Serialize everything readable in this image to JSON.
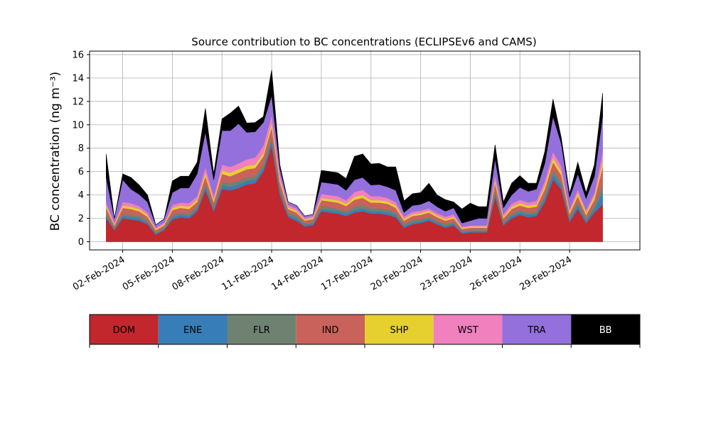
{
  "chart_data": {
    "type": "area",
    "title": "Source contribution to BC concentrations (ECLIPSEv6 and CAMS)",
    "xlabel": "",
    "ylabel": "BC concentration (ng m⁻³)",
    "ylim": [
      -0.7,
      16.3
    ],
    "yticks": [
      0,
      2,
      4,
      6,
      8,
      10,
      12,
      14,
      16
    ],
    "xlim": [
      "2024-01-31T00:00",
      "2024-03-04T06:00"
    ],
    "xticks": [
      "02-Feb-2024",
      "05-Feb-2024",
      "08-Feb-2024",
      "11-Feb-2024",
      "14-Feb-2024",
      "17-Feb-2024",
      "20-Feb-2024",
      "23-Feb-2024",
      "26-Feb-2024",
      "29-Feb-2024"
    ],
    "grid": true,
    "legend": "bottom colorbar",
    "stacked": true,
    "x": [
      "2024-02-01T00:00",
      "2024-02-01T12:00",
      "2024-02-02T00:00",
      "2024-02-02T12:00",
      "2024-02-03T00:00",
      "2024-02-03T12:00",
      "2024-02-04T00:00",
      "2024-02-04T12:00",
      "2024-02-05T00:00",
      "2024-02-05T12:00",
      "2024-02-06T00:00",
      "2024-02-06T12:00",
      "2024-02-07T00:00",
      "2024-02-07T12:00",
      "2024-02-08T00:00",
      "2024-02-08T12:00",
      "2024-02-09T00:00",
      "2024-02-09T12:00",
      "2024-02-10T00:00",
      "2024-02-10T12:00",
      "2024-02-11T00:00",
      "2024-02-11T12:00",
      "2024-02-12T00:00",
      "2024-02-12T12:00",
      "2024-02-13T00:00",
      "2024-02-13T12:00",
      "2024-02-14T00:00",
      "2024-02-14T12:00",
      "2024-02-15T00:00",
      "2024-02-15T12:00",
      "2024-02-16T00:00",
      "2024-02-16T12:00",
      "2024-02-17T00:00",
      "2024-02-17T12:00",
      "2024-02-18T00:00",
      "2024-02-18T12:00",
      "2024-02-19T00:00",
      "2024-02-19T12:00",
      "2024-02-20T00:00",
      "2024-02-20T12:00",
      "2024-02-21T00:00",
      "2024-02-21T12:00",
      "2024-02-22T00:00",
      "2024-02-22T12:00",
      "2024-02-23T00:00",
      "2024-02-23T12:00",
      "2024-02-24T00:00",
      "2024-02-24T12:00",
      "2024-02-25T00:00",
      "2024-02-25T12:00",
      "2024-02-26T00:00",
      "2024-02-26T12:00",
      "2024-02-27T00:00",
      "2024-02-27T12:00",
      "2024-02-28T00:00",
      "2024-02-28T12:00",
      "2024-02-29T00:00",
      "2024-02-29T12:00",
      "2024-03-01T00:00",
      "2024-03-01T12:00",
      "2024-03-02T00:00"
    ],
    "series": [
      {
        "name": "DOM",
        "color": "#c1272d",
        "values": [
          2.0,
          1.0,
          2.0,
          1.9,
          1.8,
          1.5,
          0.6,
          1.0,
          1.9,
          2.1,
          2.0,
          2.6,
          4.4,
          2.6,
          4.5,
          4.4,
          4.6,
          4.9,
          5.0,
          6.0,
          8.2,
          4.0,
          2.1,
          1.8,
          1.3,
          1.4,
          2.6,
          2.5,
          2.4,
          2.2,
          2.5,
          2.6,
          2.4,
          2.4,
          2.3,
          2.1,
          1.2,
          1.5,
          1.6,
          1.8,
          1.5,
          1.2,
          1.4,
          0.7,
          0.8,
          0.8,
          0.8,
          3.8,
          1.4,
          2.0,
          2.3,
          2.1,
          2.2,
          3.4,
          5.3,
          4.5,
          1.7,
          2.8,
          1.6,
          2.5,
          3.2
        ]
      },
      {
        "name": "ENE",
        "color": "#377eb8",
        "values": [
          0.2,
          0.1,
          0.2,
          0.2,
          0.2,
          0.15,
          0.1,
          0.1,
          0.2,
          0.2,
          0.2,
          0.2,
          0.3,
          0.2,
          0.3,
          0.3,
          0.3,
          0.3,
          0.3,
          0.3,
          0.4,
          0.3,
          0.2,
          0.2,
          0.15,
          0.15,
          0.2,
          0.2,
          0.2,
          0.2,
          0.2,
          0.25,
          0.2,
          0.2,
          0.2,
          0.2,
          0.15,
          0.15,
          0.15,
          0.15,
          0.15,
          0.15,
          0.15,
          0.1,
          0.1,
          0.1,
          0.1,
          0.3,
          0.15,
          0.2,
          0.2,
          0.2,
          0.2,
          0.3,
          0.4,
          0.3,
          0.2,
          0.3,
          0.2,
          0.3,
          1.0
        ]
      },
      {
        "name": "FLR",
        "color": "#6f8272",
        "values": [
          0.2,
          0.1,
          0.2,
          0.2,
          0.2,
          0.15,
          0.1,
          0.1,
          0.2,
          0.2,
          0.2,
          0.2,
          0.3,
          0.2,
          0.3,
          0.3,
          0.3,
          0.3,
          0.3,
          0.3,
          0.4,
          0.3,
          0.2,
          0.2,
          0.15,
          0.15,
          0.25,
          0.25,
          0.25,
          0.2,
          0.3,
          0.3,
          0.25,
          0.25,
          0.25,
          0.2,
          0.15,
          0.2,
          0.2,
          0.2,
          0.15,
          0.15,
          0.15,
          0.1,
          0.1,
          0.1,
          0.1,
          0.3,
          0.15,
          0.2,
          0.2,
          0.2,
          0.2,
          0.3,
          0.4,
          0.3,
          0.2,
          0.3,
          0.2,
          0.3,
          0.7
        ]
      },
      {
        "name": "IND",
        "color": "#c9625a",
        "values": [
          0.5,
          0.2,
          0.5,
          0.5,
          0.4,
          0.35,
          0.2,
          0.2,
          0.4,
          0.4,
          0.4,
          0.4,
          0.6,
          0.4,
          0.7,
          0.6,
          0.7,
          0.7,
          0.7,
          0.7,
          0.8,
          0.5,
          0.3,
          0.3,
          0.2,
          0.25,
          0.5,
          0.5,
          0.5,
          0.45,
          0.6,
          0.6,
          0.5,
          0.5,
          0.5,
          0.4,
          0.3,
          0.35,
          0.35,
          0.35,
          0.3,
          0.3,
          0.3,
          0.2,
          0.2,
          0.2,
          0.2,
          0.6,
          0.3,
          0.4,
          0.4,
          0.4,
          0.4,
          0.5,
          0.7,
          0.6,
          0.3,
          0.5,
          0.3,
          0.5,
          1.5
        ]
      },
      {
        "name": "SHP",
        "color": "#e6d02f",
        "values": [
          0.2,
          0.1,
          0.2,
          0.2,
          0.2,
          0.15,
          0.1,
          0.1,
          0.2,
          0.2,
          0.2,
          0.2,
          0.3,
          0.2,
          0.3,
          0.3,
          0.3,
          0.3,
          0.3,
          0.3,
          0.35,
          0.25,
          0.15,
          0.15,
          0.1,
          0.1,
          0.2,
          0.2,
          0.2,
          0.2,
          0.25,
          0.25,
          0.2,
          0.2,
          0.2,
          0.2,
          0.15,
          0.15,
          0.15,
          0.15,
          0.15,
          0.15,
          0.15,
          0.1,
          0.1,
          0.1,
          0.1,
          0.3,
          0.15,
          0.2,
          0.2,
          0.2,
          0.2,
          0.3,
          0.4,
          0.3,
          0.2,
          0.3,
          0.2,
          0.3,
          0.5
        ]
      },
      {
        "name": "WST",
        "color": "#f080be",
        "values": [
          0.3,
          0.15,
          0.3,
          0.3,
          0.25,
          0.2,
          0.1,
          0.15,
          0.25,
          0.25,
          0.3,
          0.3,
          0.5,
          0.3,
          0.5,
          0.5,
          0.5,
          0.55,
          0.6,
          0.6,
          0.7,
          0.4,
          0.2,
          0.2,
          0.15,
          0.15,
          0.35,
          0.35,
          0.35,
          0.3,
          0.4,
          0.45,
          0.35,
          0.35,
          0.3,
          0.3,
          0.2,
          0.2,
          0.2,
          0.2,
          0.2,
          0.2,
          0.2,
          0.1,
          0.1,
          0.1,
          0.1,
          0.4,
          0.2,
          0.25,
          0.3,
          0.25,
          0.3,
          0.4,
          0.5,
          0.5,
          0.2,
          0.3,
          0.2,
          0.3,
          0.8
        ]
      },
      {
        "name": "TRA",
        "color": "#9370db",
        "values": [
          2.1,
          0.35,
          1.9,
          1.2,
          1.0,
          0.9,
          0.25,
          0.3,
          1.05,
          1.25,
          1.3,
          1.9,
          3.0,
          1.4,
          2.9,
          3.1,
          3.4,
          2.3,
          2.2,
          2.0,
          1.65,
          0.5,
          0.25,
          0.25,
          0.15,
          0.15,
          1.0,
          1.0,
          1.0,
          0.85,
          1.05,
          1.05,
          0.95,
          1.0,
          0.95,
          1.0,
          0.35,
          0.55,
          0.55,
          0.65,
          0.55,
          0.45,
          0.55,
          0.3,
          0.4,
          0.6,
          0.6,
          1.4,
          0.55,
          0.75,
          1.05,
          0.95,
          1.0,
          1.5,
          3.0,
          1.9,
          1.0,
          1.3,
          1.0,
          1.4,
          3.0
        ]
      },
      {
        "name": "BB",
        "color": "#000000",
        "values": [
          2.0,
          0.0,
          0.5,
          1.0,
          0.8,
          0.6,
          0.0,
          0.0,
          1.0,
          1.0,
          1.0,
          1.0,
          2.0,
          0.5,
          1.0,
          1.5,
          1.5,
          0.8,
          0.8,
          0.5,
          2.2,
          0.3,
          0.0,
          0.0,
          0.0,
          0.0,
          1.0,
          1.0,
          1.0,
          1.0,
          2.0,
          2.0,
          1.8,
          1.8,
          1.7,
          2.0,
          1.0,
          1.0,
          1.0,
          1.5,
          1.0,
          1.0,
          0.5,
          1.2,
          1.5,
          1.0,
          1.0,
          1.2,
          0.5,
          1.0,
          1.0,
          0.7,
          0.5,
          1.0,
          1.5,
          0.5,
          0.3,
          1.0,
          0.5,
          1.0,
          2.0
        ]
      }
    ]
  }
}
